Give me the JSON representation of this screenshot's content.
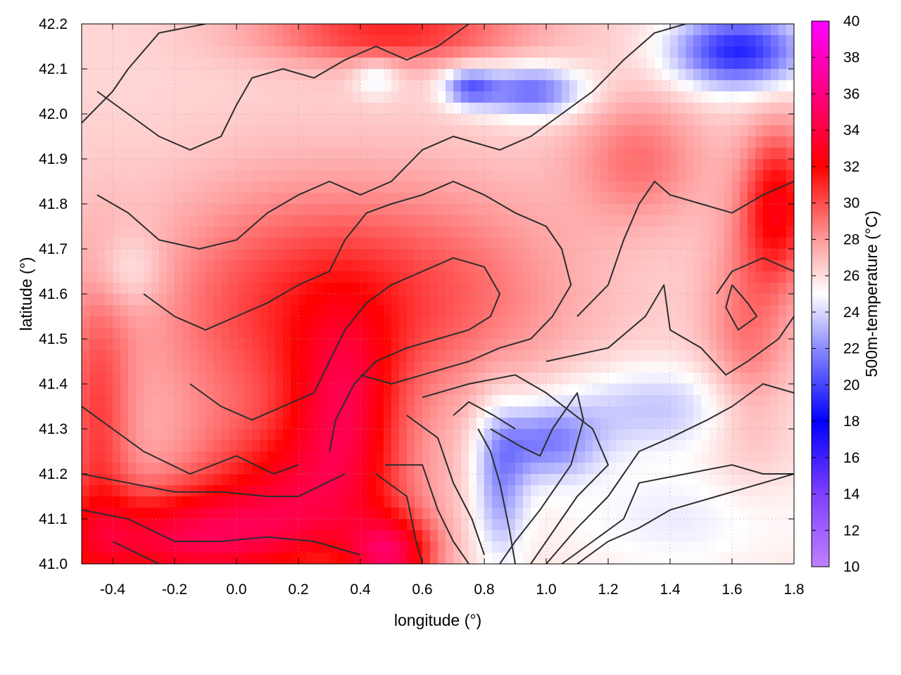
{
  "chart_data": {
    "type": "heatmap",
    "title": "",
    "xlabel": "longitude (°)",
    "ylabel": "latitude (°)",
    "colorbar_label": "500m-temperature (°C)",
    "xlim": [
      -0.5,
      1.8
    ],
    "ylim": [
      41.0,
      42.2
    ],
    "x_ticks": [
      "-0.4",
      "-0.2",
      "0.0",
      "0.2",
      "0.4",
      "0.6",
      "0.8",
      "1.0",
      "1.2",
      "1.4",
      "1.6",
      "1.8"
    ],
    "y_ticks": [
      "41.0",
      "41.1",
      "41.2",
      "41.3",
      "41.4",
      "41.5",
      "41.6",
      "41.7",
      "41.8",
      "41.9",
      "42.0",
      "42.1",
      "42.2"
    ],
    "colorbar_range": [
      10,
      40
    ],
    "colorbar_ticks": [
      "10",
      "12",
      "14",
      "16",
      "18",
      "20",
      "22",
      "24",
      "26",
      "28",
      "30",
      "32",
      "34",
      "36",
      "38",
      "40"
    ],
    "grid": true,
    "colormap": [
      {
        "value": 10,
        "color": "#c080ff"
      },
      {
        "value": 14,
        "color": "#7f3fff"
      },
      {
        "value": 18,
        "color": "#0000ff"
      },
      {
        "value": 22,
        "color": "#8a8aff"
      },
      {
        "value": 25,
        "color": "#ffffff"
      },
      {
        "value": 28,
        "color": "#ff9a9a"
      },
      {
        "value": 32,
        "color": "#ff0000"
      },
      {
        "value": 36,
        "color": "#ff0080"
      },
      {
        "value": 40,
        "color": "#ff00ff"
      }
    ],
    "hot_features": [
      {
        "lon": -0.2,
        "lat": 41.05,
        "temp": 33,
        "sx": 0.3,
        "sy": 0.08
      },
      {
        "lon": 0.2,
        "lat": 41.15,
        "temp": 31.5,
        "sx": 0.25,
        "sy": 0.12
      },
      {
        "lon": 0.35,
        "lat": 41.35,
        "temp": 31,
        "sx": 0.12,
        "sy": 0.15
      },
      {
        "lon": 0.5,
        "lat": 41.02,
        "temp": 33,
        "sx": 0.1,
        "sy": 0.06
      },
      {
        "lon": 0.1,
        "lat": 41.55,
        "temp": 29.5,
        "sx": 0.3,
        "sy": 0.2
      },
      {
        "lon": 0.6,
        "lat": 41.6,
        "temp": 29.5,
        "sx": 0.35,
        "sy": 0.18
      },
      {
        "lon": 1.75,
        "lat": 41.8,
        "temp": 32,
        "sx": 0.08,
        "sy": 0.12
      },
      {
        "lon": 1.65,
        "lat": 41.5,
        "temp": 29,
        "sx": 0.1,
        "sy": 0.2
      },
      {
        "lon": -0.45,
        "lat": 41.3,
        "temp": 30,
        "sx": 0.08,
        "sy": 0.25
      },
      {
        "lon": 0.5,
        "lat": 42.18,
        "temp": 31,
        "sx": 0.3,
        "sy": 0.05
      },
      {
        "lon": 1.3,
        "lat": 41.9,
        "temp": 29,
        "sx": 0.15,
        "sy": 0.1
      }
    ],
    "cold_features": [
      {
        "lon": 1.62,
        "lat": 42.14,
        "temp": 19,
        "sx": 0.15,
        "sy": 0.06
      },
      {
        "lon": 0.95,
        "lat": 42.05,
        "temp": 21,
        "sx": 0.12,
        "sy": 0.04
      },
      {
        "lon": 0.75,
        "lat": 42.06,
        "temp": 21.5,
        "sx": 0.06,
        "sy": 0.03
      },
      {
        "lon": 1.0,
        "lat": 41.27,
        "temp": 22,
        "sx": 0.12,
        "sy": 0.06
      },
      {
        "lon": 0.85,
        "lat": 41.18,
        "temp": 22.5,
        "sx": 0.06,
        "sy": 0.12
      },
      {
        "lon": 1.35,
        "lat": 41.35,
        "temp": 23.5,
        "sx": 0.25,
        "sy": 0.07
      },
      {
        "lon": -0.35,
        "lat": 41.65,
        "temp": 24.5,
        "sx": 0.08,
        "sy": 0.06
      },
      {
        "lon": 1.45,
        "lat": 41.1,
        "temp": 24.5,
        "sx": 0.35,
        "sy": 0.1
      },
      {
        "lon": 0.45,
        "lat": 42.08,
        "temp": 24,
        "sx": 0.05,
        "sy": 0.03
      }
    ],
    "contours": [
      [
        [
          -0.5,
          41.98
        ],
        [
          -0.4,
          42.05
        ],
        [
          -0.35,
          42.1
        ],
        [
          -0.25,
          42.18
        ],
        [
          -0.1,
          42.2
        ]
      ],
      [
        [
          -0.5,
          41.35
        ],
        [
          -0.4,
          41.3
        ],
        [
          -0.3,
          41.25
        ],
        [
          -0.15,
          41.2
        ],
        [
          0.0,
          41.24
        ],
        [
          0.12,
          41.2
        ],
        [
          0.2,
          41.22
        ]
      ],
      [
        [
          -0.5,
          41.2
        ],
        [
          -0.35,
          41.18
        ],
        [
          -0.2,
          41.16
        ],
        [
          -0.05,
          41.16
        ],
        [
          0.1,
          41.15
        ],
        [
          0.2,
          41.15
        ],
        [
          0.35,
          41.2
        ]
      ],
      [
        [
          -0.5,
          41.12
        ],
        [
          -0.35,
          41.1
        ],
        [
          -0.2,
          41.05
        ],
        [
          -0.05,
          41.05
        ],
        [
          0.1,
          41.06
        ],
        [
          0.25,
          41.05
        ],
        [
          0.4,
          41.02
        ]
      ],
      [
        [
          -0.4,
          41.05
        ],
        [
          -0.25,
          41.0
        ]
      ],
      [
        [
          0.45,
          41.2
        ],
        [
          0.55,
          41.15
        ],
        [
          0.58,
          41.05
        ],
        [
          0.6,
          41.0
        ]
      ],
      [
        [
          0.48,
          41.22
        ],
        [
          0.6,
          41.22
        ],
        [
          0.65,
          41.12
        ],
        [
          0.7,
          41.05
        ],
        [
          0.75,
          41.0
        ]
      ],
      [
        [
          0.55,
          41.33
        ],
        [
          0.65,
          41.28
        ],
        [
          0.7,
          41.18
        ],
        [
          0.76,
          41.1
        ],
        [
          0.8,
          41.02
        ]
      ],
      [
        [
          0.78,
          41.3
        ],
        [
          0.82,
          41.25
        ],
        [
          0.85,
          41.18
        ],
        [
          0.88,
          41.08
        ],
        [
          0.9,
          41.0
        ]
      ],
      [
        [
          0.82,
          41.3
        ],
        [
          0.92,
          41.26
        ],
        [
          0.98,
          41.24
        ],
        [
          1.02,
          41.3
        ],
        [
          1.1,
          41.38
        ],
        [
          1.12,
          41.32
        ],
        [
          1.08,
          41.22
        ],
        [
          0.98,
          41.12
        ],
        [
          0.9,
          41.05
        ],
        [
          0.85,
          41.0
        ]
      ],
      [
        [
          0.7,
          41.33
        ],
        [
          0.75,
          41.36
        ],
        [
          0.83,
          41.33
        ],
        [
          0.9,
          41.3
        ]
      ],
      [
        [
          0.6,
          41.37
        ],
        [
          0.75,
          41.4
        ],
        [
          0.9,
          41.42
        ],
        [
          1.0,
          41.38
        ],
        [
          1.15,
          41.3
        ],
        [
          1.2,
          41.22
        ],
        [
          1.1,
          41.15
        ],
        [
          1.0,
          41.05
        ],
        [
          0.95,
          41.0
        ]
      ],
      [
        [
          1.0,
          41.0
        ],
        [
          1.1,
          41.08
        ],
        [
          1.2,
          41.15
        ],
        [
          1.3,
          41.25
        ],
        [
          1.4,
          41.28
        ],
        [
          1.52,
          41.32
        ],
        [
          1.6,
          41.35
        ],
        [
          1.7,
          41.4
        ],
        [
          1.8,
          41.38
        ]
      ],
      [
        [
          1.05,
          41.0
        ],
        [
          1.15,
          41.05
        ],
        [
          1.25,
          41.1
        ],
        [
          1.3,
          41.18
        ],
        [
          1.45,
          41.2
        ],
        [
          1.6,
          41.22
        ],
        [
          1.7,
          41.2
        ],
        [
          1.8,
          41.2
        ]
      ],
      [
        [
          1.1,
          41.0
        ],
        [
          1.2,
          41.05
        ],
        [
          1.3,
          41.08
        ],
        [
          1.4,
          41.12
        ],
        [
          1.55,
          41.15
        ],
        [
          1.7,
          41.18
        ],
        [
          1.8,
          41.2
        ]
      ],
      [
        [
          1.0,
          41.45
        ],
        [
          1.2,
          41.48
        ],
        [
          1.32,
          41.55
        ],
        [
          1.38,
          41.62
        ],
        [
          1.4,
          41.52
        ],
        [
          1.5,
          41.48
        ],
        [
          1.58,
          41.42
        ],
        [
          1.65,
          41.45
        ],
        [
          1.75,
          41.5
        ],
        [
          1.8,
          41.55
        ]
      ],
      [
        [
          1.1,
          41.55
        ],
        [
          1.2,
          41.62
        ],
        [
          1.25,
          41.72
        ],
        [
          1.3,
          41.8
        ],
        [
          1.35,
          41.85
        ],
        [
          1.4,
          41.82
        ],
        [
          1.5,
          41.8
        ],
        [
          1.6,
          41.78
        ],
        [
          1.7,
          41.82
        ],
        [
          1.8,
          41.85
        ]
      ],
      [
        [
          1.55,
          41.6
        ],
        [
          1.6,
          41.65
        ],
        [
          1.7,
          41.68
        ],
        [
          1.8,
          41.65
        ]
      ],
      [
        [
          1.6,
          41.62
        ],
        [
          1.65,
          41.58
        ],
        [
          1.68,
          41.55
        ],
        [
          1.62,
          41.52
        ],
        [
          1.58,
          41.57
        ],
        [
          1.6,
          41.62
        ]
      ],
      [
        [
          -0.45,
          42.05
        ],
        [
          -0.35,
          42.0
        ],
        [
          -0.25,
          41.95
        ],
        [
          -0.15,
          41.92
        ],
        [
          -0.05,
          41.95
        ],
        [
          0.0,
          42.02
        ],
        [
          0.05,
          42.08
        ],
        [
          0.15,
          42.1
        ],
        [
          0.25,
          42.08
        ],
        [
          0.35,
          42.12
        ],
        [
          0.45,
          42.15
        ],
        [
          0.55,
          42.12
        ],
        [
          0.65,
          42.15
        ],
        [
          0.75,
          42.2
        ]
      ],
      [
        [
          -0.45,
          41.82
        ],
        [
          -0.35,
          41.78
        ],
        [
          -0.25,
          41.72
        ],
        [
          -0.12,
          41.7
        ],
        [
          0.0,
          41.72
        ],
        [
          0.1,
          41.78
        ],
        [
          0.2,
          41.82
        ],
        [
          0.3,
          41.85
        ],
        [
          0.4,
          41.82
        ],
        [
          0.5,
          41.85
        ],
        [
          0.6,
          41.92
        ],
        [
          0.7,
          41.95
        ],
        [
          0.85,
          41.92
        ],
        [
          0.95,
          41.95
        ],
        [
          1.05,
          42.0
        ],
        [
          1.15,
          42.05
        ],
        [
          1.25,
          42.12
        ],
        [
          1.35,
          42.18
        ],
        [
          1.45,
          42.2
        ]
      ],
      [
        [
          -0.3,
          41.6
        ],
        [
          -0.2,
          41.55
        ],
        [
          -0.1,
          41.52
        ],
        [
          0.0,
          41.55
        ],
        [
          0.1,
          41.58
        ],
        [
          0.2,
          41.62
        ],
        [
          0.3,
          41.65
        ],
        [
          0.35,
          41.72
        ],
        [
          0.42,
          41.78
        ],
        [
          0.5,
          41.8
        ],
        [
          0.6,
          41.82
        ],
        [
          0.7,
          41.85
        ],
        [
          0.8,
          41.82
        ],
        [
          0.9,
          41.78
        ],
        [
          1.0,
          41.75
        ],
        [
          1.05,
          41.7
        ],
        [
          1.08,
          41.62
        ],
        [
          1.02,
          41.55
        ],
        [
          0.95,
          41.5
        ],
        [
          0.85,
          41.48
        ],
        [
          0.75,
          41.45
        ],
        [
          0.6,
          41.42
        ],
        [
          0.5,
          41.4
        ],
        [
          0.4,
          41.42
        ]
      ],
      [
        [
          -0.15,
          41.4
        ],
        [
          -0.05,
          41.35
        ],
        [
          0.05,
          41.32
        ],
        [
          0.15,
          41.35
        ],
        [
          0.25,
          41.38
        ],
        [
          0.3,
          41.45
        ],
        [
          0.35,
          41.52
        ],
        [
          0.42,
          41.58
        ],
        [
          0.5,
          41.62
        ],
        [
          0.6,
          41.65
        ],
        [
          0.7,
          41.68
        ],
        [
          0.8,
          41.66
        ],
        [
          0.85,
          41.6
        ],
        [
          0.82,
          41.55
        ],
        [
          0.75,
          41.52
        ],
        [
          0.65,
          41.5
        ],
        [
          0.55,
          41.48
        ],
        [
          0.45,
          41.45
        ],
        [
          0.38,
          41.4
        ],
        [
          0.32,
          41.32
        ],
        [
          0.3,
          41.25
        ]
      ]
    ]
  }
}
